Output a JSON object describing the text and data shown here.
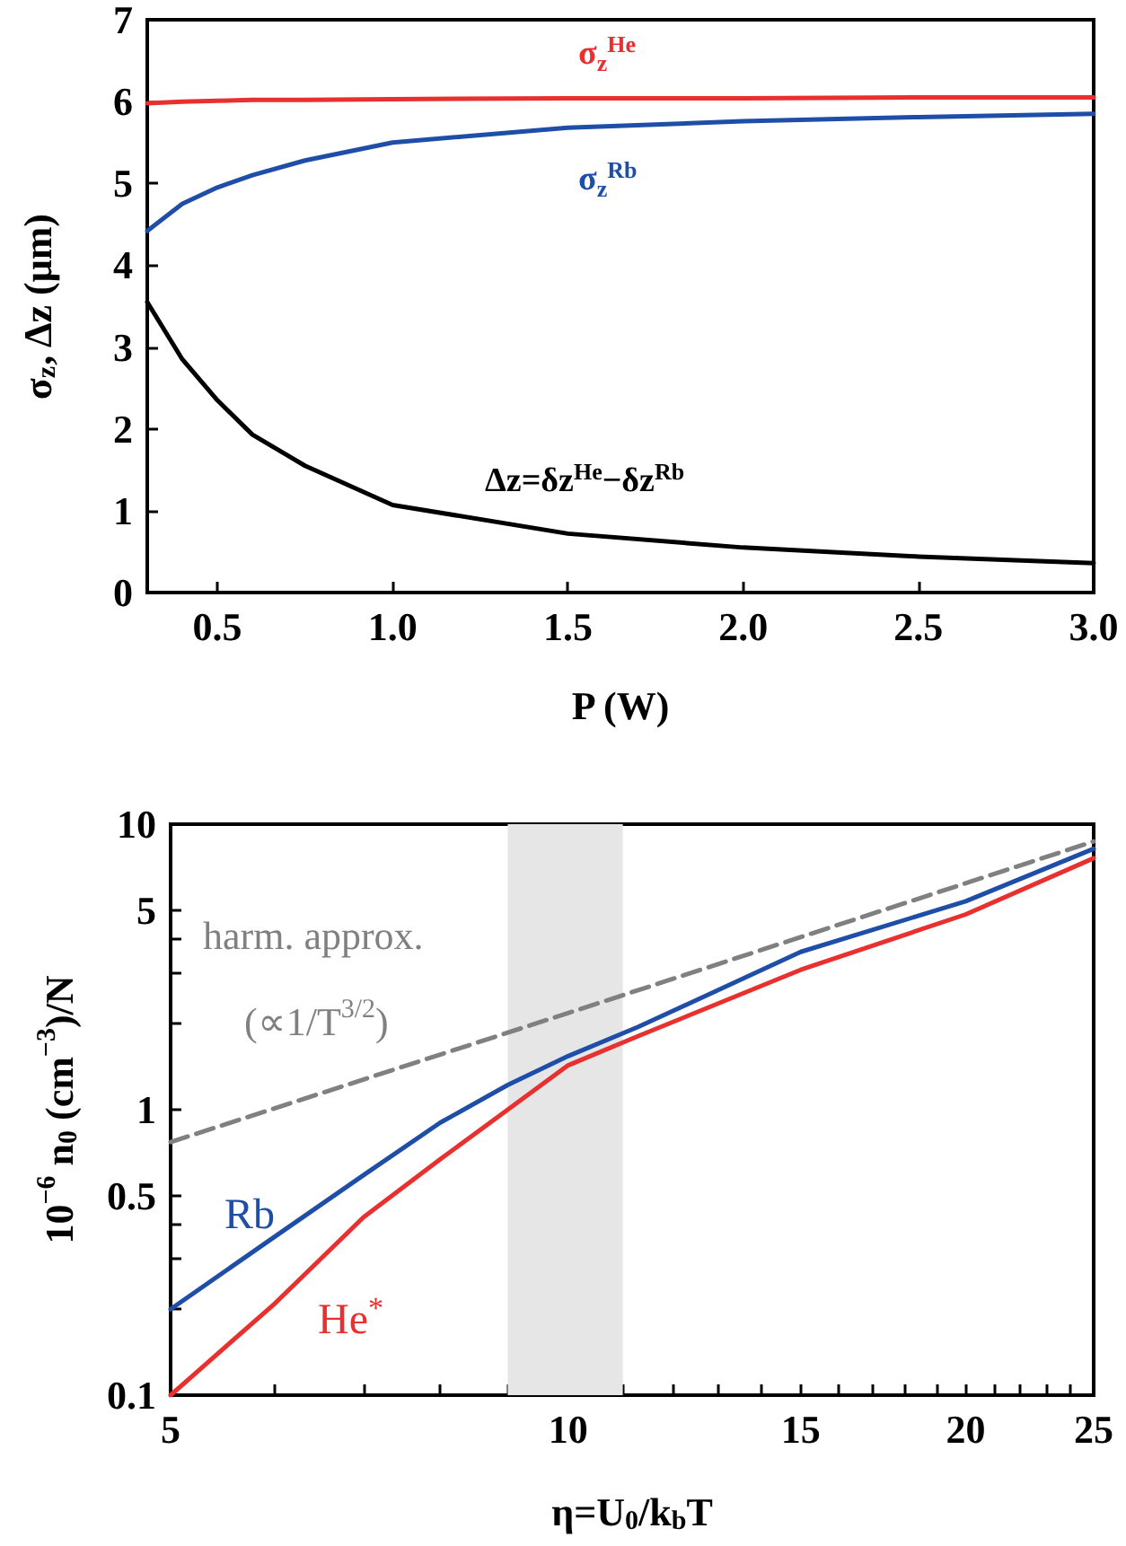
{
  "chart_data": [
    {
      "type": "line",
      "xlabel": "P (W)",
      "ylabel": "σ$_{z}$, Δz (μm)",
      "xlim": [
        0.3,
        3.0
      ],
      "ylim": [
        0,
        7
      ],
      "xticks": [
        {
          "value": 0.5,
          "label": "0.5"
        },
        {
          "value": 1,
          "label": "1.0"
        },
        {
          "value": 1.5,
          "label": "1.5"
        },
        {
          "value": 2,
          "label": "2.0"
        },
        {
          "value": 2.5,
          "label": "2.5"
        },
        {
          "value": 3,
          "label": "3.0"
        }
      ],
      "yticks": [
        0,
        1,
        2,
        3,
        4,
        5,
        6,
        7
      ],
      "grid": false,
      "marker": "none",
      "x": [
        0.3,
        0.4,
        0.5,
        0.6,
        0.75,
        1.0,
        1.5,
        2.0,
        2.5,
        3.0
      ],
      "series": [
        {
          "name": "σ$_{z}$$^{He}$",
          "color": "#e8302f",
          "values": [
            5.98,
            6.0,
            6.01,
            6.02,
            6.02,
            6.03,
            6.04,
            6.04,
            6.05,
            6.05
          ]
        },
        {
          "name": "σ$_{z}$$^{Rb}$",
          "color": "#1f4ea8",
          "values": [
            4.42,
            4.75,
            4.95,
            5.1,
            5.28,
            5.5,
            5.68,
            5.76,
            5.81,
            5.85
          ]
        },
        {
          "name": "Δz=δz$^{He}$−δz$^{Rb}$",
          "color": "#000000",
          "values": [
            3.55,
            2.85,
            2.35,
            1.93,
            1.55,
            1.07,
            0.72,
            0.55,
            0.44,
            0.36
          ]
        }
      ]
    },
    {
      "type": "line",
      "xlabel": "η=U$_{0}$/k$_{b}$T",
      "ylabel": "10$^{−6}$ n$_{0}$ (cm$^{−3}$)/N",
      "log": "xy",
      "xlim": [
        5,
        25
      ],
      "ylim": [
        0.1,
        10
      ],
      "xticks": [
        5,
        {
          "value": 6,
          "label": null
        },
        {
          "value": 7,
          "label": null
        },
        {
          "value": 8,
          "label": null
        },
        {
          "value": 9,
          "label": null
        },
        10,
        {
          "value": 11,
          "label": null
        },
        {
          "value": 12,
          "label": null
        },
        {
          "value": 13,
          "label": null
        },
        {
          "value": 14,
          "label": null
        },
        15,
        {
          "value": 16,
          "label": null
        },
        {
          "value": 17,
          "label": null
        },
        {
          "value": 18,
          "label": null
        },
        {
          "value": 19,
          "label": null
        },
        20,
        {
          "value": 21,
          "label": null
        },
        {
          "value": 22,
          "label": null
        },
        {
          "value": 23,
          "label": null
        },
        {
          "value": 24,
          "label": null
        },
        25
      ],
      "yticks": [
        0.1,
        {
          "value": 0.2,
          "label": null
        },
        {
          "value": 0.3,
          "label": null
        },
        {
          "value": 0.4,
          "label": null
        },
        0.5,
        1,
        {
          "value": 2,
          "label": null
        },
        {
          "value": 3,
          "label": null
        },
        {
          "value": 4,
          "label": null
        },
        5,
        10
      ],
      "grid": false,
      "marker": "none",
      "annotations": [
        "harm. approx.",
        "(∝1/T$^{3/2}$)"
      ],
      "bands": [
        {
          "axis": "x",
          "from": 9,
          "to": 11,
          "color": "#e6e6e6"
        }
      ],
      "series": [
        {
          "color": "#808080",
          "line_style": "dashed",
          "x": [
            5,
            10,
            25
          ],
          "values": [
            0.77,
            2.18,
            8.7
          ]
        },
        {
          "name": "Rb",
          "color": "#1f4ea8",
          "x": [
            5,
            6,
            7,
            8,
            9,
            10,
            11.3,
            15,
            20,
            25
          ],
          "values": [
            0.2,
            0.36,
            0.59,
            0.9,
            1.22,
            1.54,
            1.95,
            3.57,
            5.37,
            8.2
          ]
        },
        {
          "name": "He$^{*}$",
          "color": "#e8302f",
          "x": [
            5,
            6,
            7,
            8,
            9,
            10,
            11.3,
            15,
            20,
            25
          ],
          "values": [
            0.1,
            0.21,
            0.42,
            0.67,
            1.0,
            1.43,
            1.81,
            3.09,
            4.83,
            7.6
          ]
        }
      ]
    }
  ]
}
